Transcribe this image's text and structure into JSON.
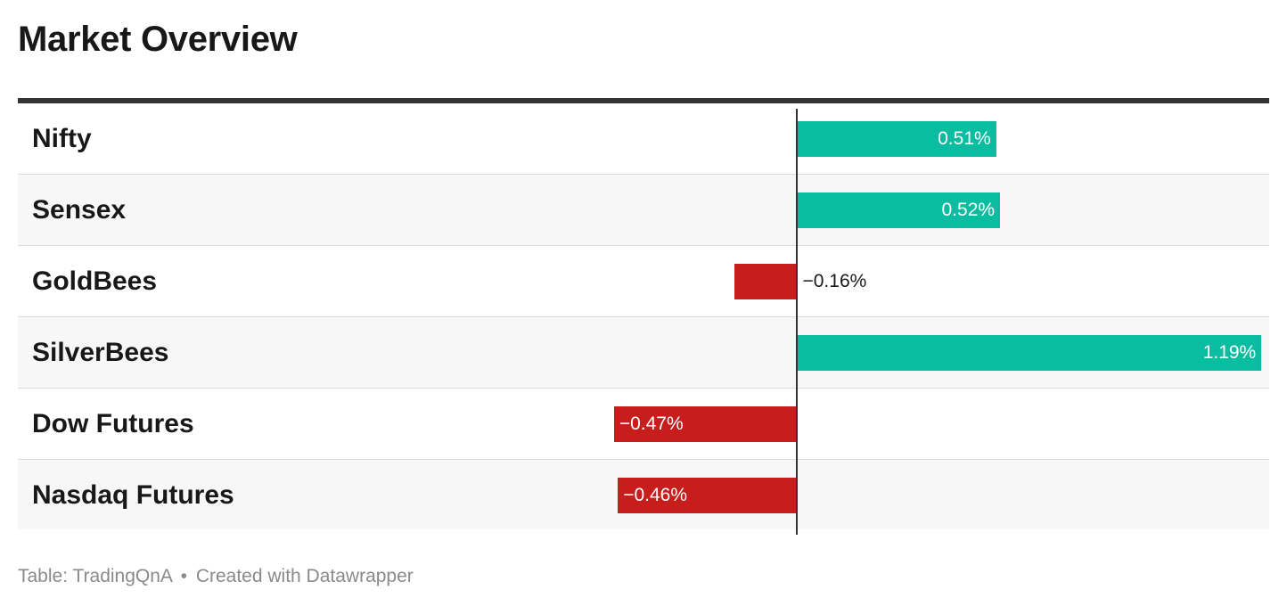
{
  "title": "Market Overview",
  "chart_data": {
    "type": "bar",
    "orientation": "horizontal",
    "categories": [
      "Nifty",
      "Sensex",
      "GoldBees",
      "SilverBees",
      "Dow Futures",
      "Nasdaq Futures"
    ],
    "values": [
      0.51,
      0.52,
      -0.16,
      1.19,
      -0.47,
      -0.46
    ],
    "value_labels": [
      "0.51%",
      "0.52%",
      "−0.16%",
      "1.19%",
      "−0.47%",
      "−0.46%"
    ],
    "xlim": [
      -1.13,
      1.21
    ],
    "positive_color": "#0abda0",
    "negative_color": "#c71e1d"
  },
  "footer": {
    "source": "Table: TradingQnA",
    "separator": "•",
    "credit": "Created with Datawrapper"
  }
}
